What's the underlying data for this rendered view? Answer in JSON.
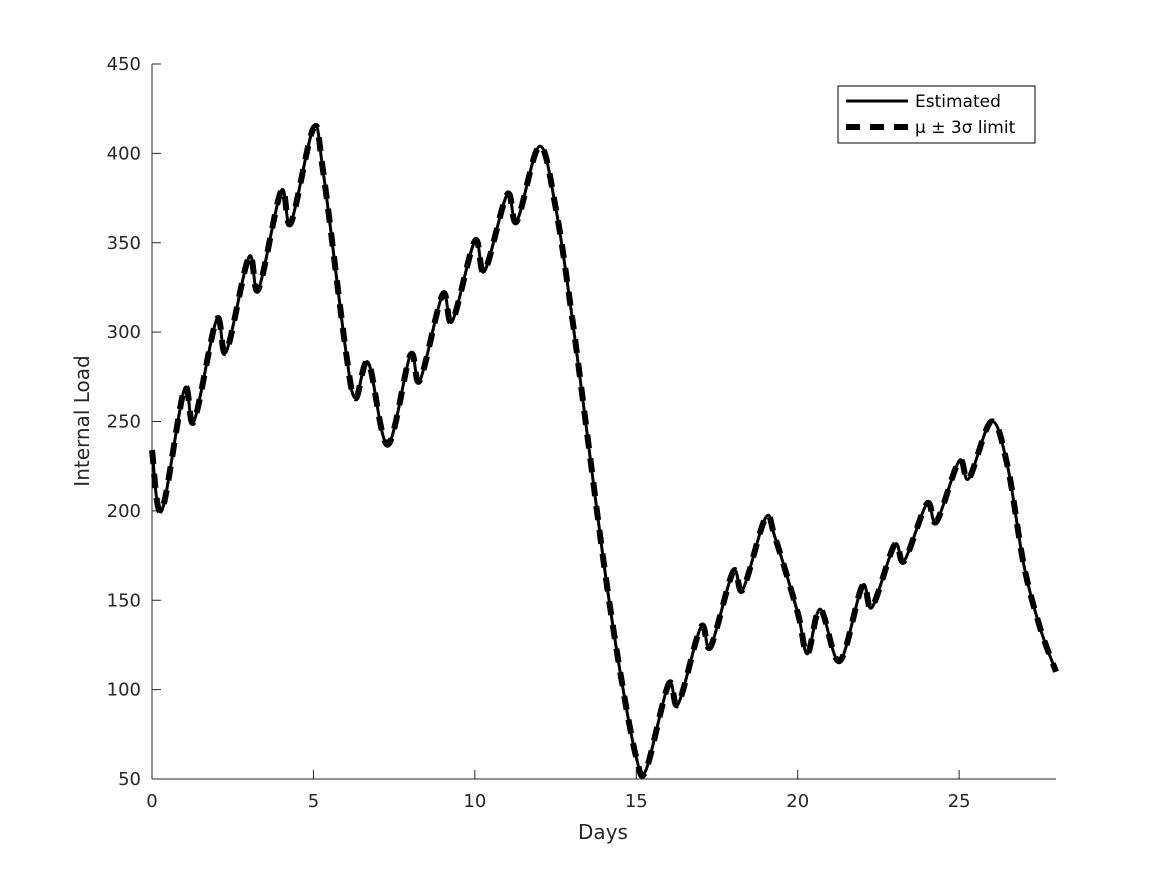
{
  "chart_data": {
    "type": "line",
    "xlabel": "Days",
    "ylabel": "Internal Load",
    "xlim": [
      0,
      28
    ],
    "ylim": [
      50,
      450
    ],
    "xticks": [
      0,
      5,
      10,
      15,
      20,
      25
    ],
    "yticks": [
      50,
      100,
      150,
      200,
      250,
      300,
      350,
      400,
      450
    ],
    "grid": false,
    "legend_position": "top-right",
    "series": [
      {
        "name": "Estimated",
        "style": "solid",
        "x": [
          0,
          0.3,
          1,
          1.3,
          2,
          2.3,
          3,
          3.3,
          4,
          4.3,
          5,
          5.3,
          6,
          6.3,
          6.7,
          7.3,
          8,
          8.3,
          9,
          9.3,
          10,
          10.3,
          11,
          11.3,
          12,
          12.5,
          13,
          13.5,
          14,
          14.5,
          15,
          15.3,
          16,
          16.3,
          17,
          17.3,
          18,
          18.3,
          19,
          19.3,
          20,
          20.3,
          20.7,
          21.3,
          22,
          22.3,
          23,
          23.3,
          24,
          24.3,
          25,
          25.3,
          26,
          26.5,
          27,
          27.5,
          28
        ],
        "values": [
          234,
          200,
          268,
          250,
          307,
          289,
          342,
          324,
          379,
          361,
          414,
          390,
          290,
          263,
          283,
          237,
          287,
          273,
          321,
          306,
          351,
          334,
          377,
          362,
          404,
          370,
          310,
          240,
          170,
          110,
          62,
          55,
          103,
          92,
          135,
          124,
          166,
          156,
          196,
          185,
          143,
          120,
          145,
          116,
          158,
          146,
          181,
          172,
          204,
          194,
          228,
          218,
          250,
          225,
          170,
          135,
          110
        ]
      },
      {
        "name": "μ ± 3σ limit",
        "style": "dashed",
        "x": [
          0,
          0.3,
          1,
          1.3,
          2,
          2.3,
          3,
          3.3,
          4,
          4.3,
          5,
          5.3,
          6,
          6.3,
          6.7,
          7.3,
          8,
          8.3,
          9,
          9.3,
          10,
          10.3,
          11,
          11.3,
          12,
          12.5,
          13,
          13.5,
          14,
          14.5,
          15,
          15.3,
          16,
          16.3,
          17,
          17.3,
          18,
          18.3,
          19,
          19.3,
          20,
          20.3,
          20.7,
          21.3,
          22,
          22.3,
          23,
          23.3,
          24,
          24.3,
          25,
          25.3,
          26,
          26.5,
          27,
          27.5,
          28
        ],
        "values": [
          234,
          200,
          268,
          250,
          307,
          289,
          342,
          324,
          379,
          361,
          414,
          390,
          290,
          263,
          283,
          237,
          287,
          273,
          321,
          306,
          351,
          334,
          377,
          362,
          404,
          370,
          310,
          240,
          170,
          110,
          62,
          55,
          103,
          92,
          135,
          124,
          166,
          156,
          196,
          185,
          143,
          120,
          145,
          116,
          158,
          146,
          181,
          172,
          204,
          194,
          228,
          218,
          250,
          225,
          170,
          135,
          110
        ]
      }
    ]
  }
}
